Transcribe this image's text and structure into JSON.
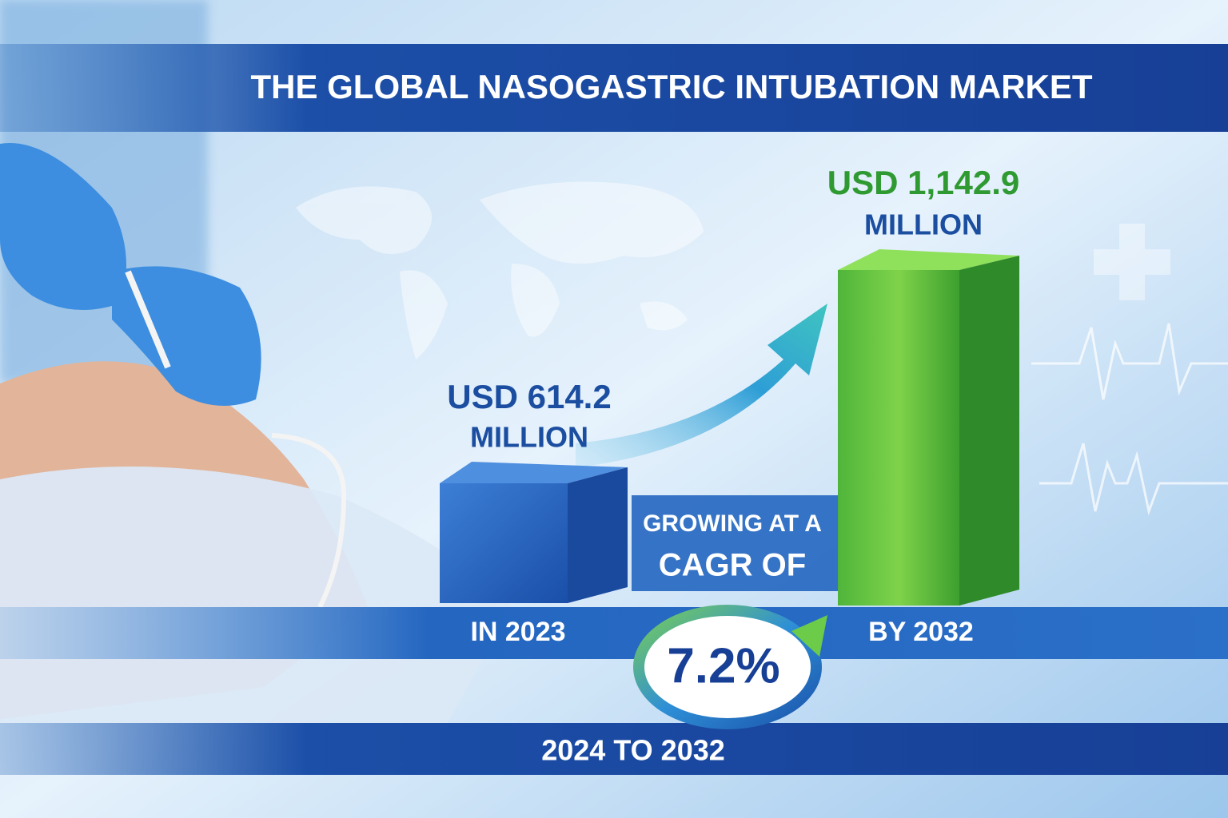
{
  "title": "THE GLOBAL NASOGASTRIC INTUBATION MARKET",
  "start": {
    "amount": "USD 614.2",
    "unit": "MILLION",
    "label": "IN 2023"
  },
  "end": {
    "amount": "USD 1,142.9",
    "unit": "MILLION",
    "label": "BY 2032"
  },
  "cagr": {
    "lead": "GROWING AT A",
    "label": "CAGR OF",
    "value": "7.2%",
    "period": "2024 TO 2032"
  }
}
